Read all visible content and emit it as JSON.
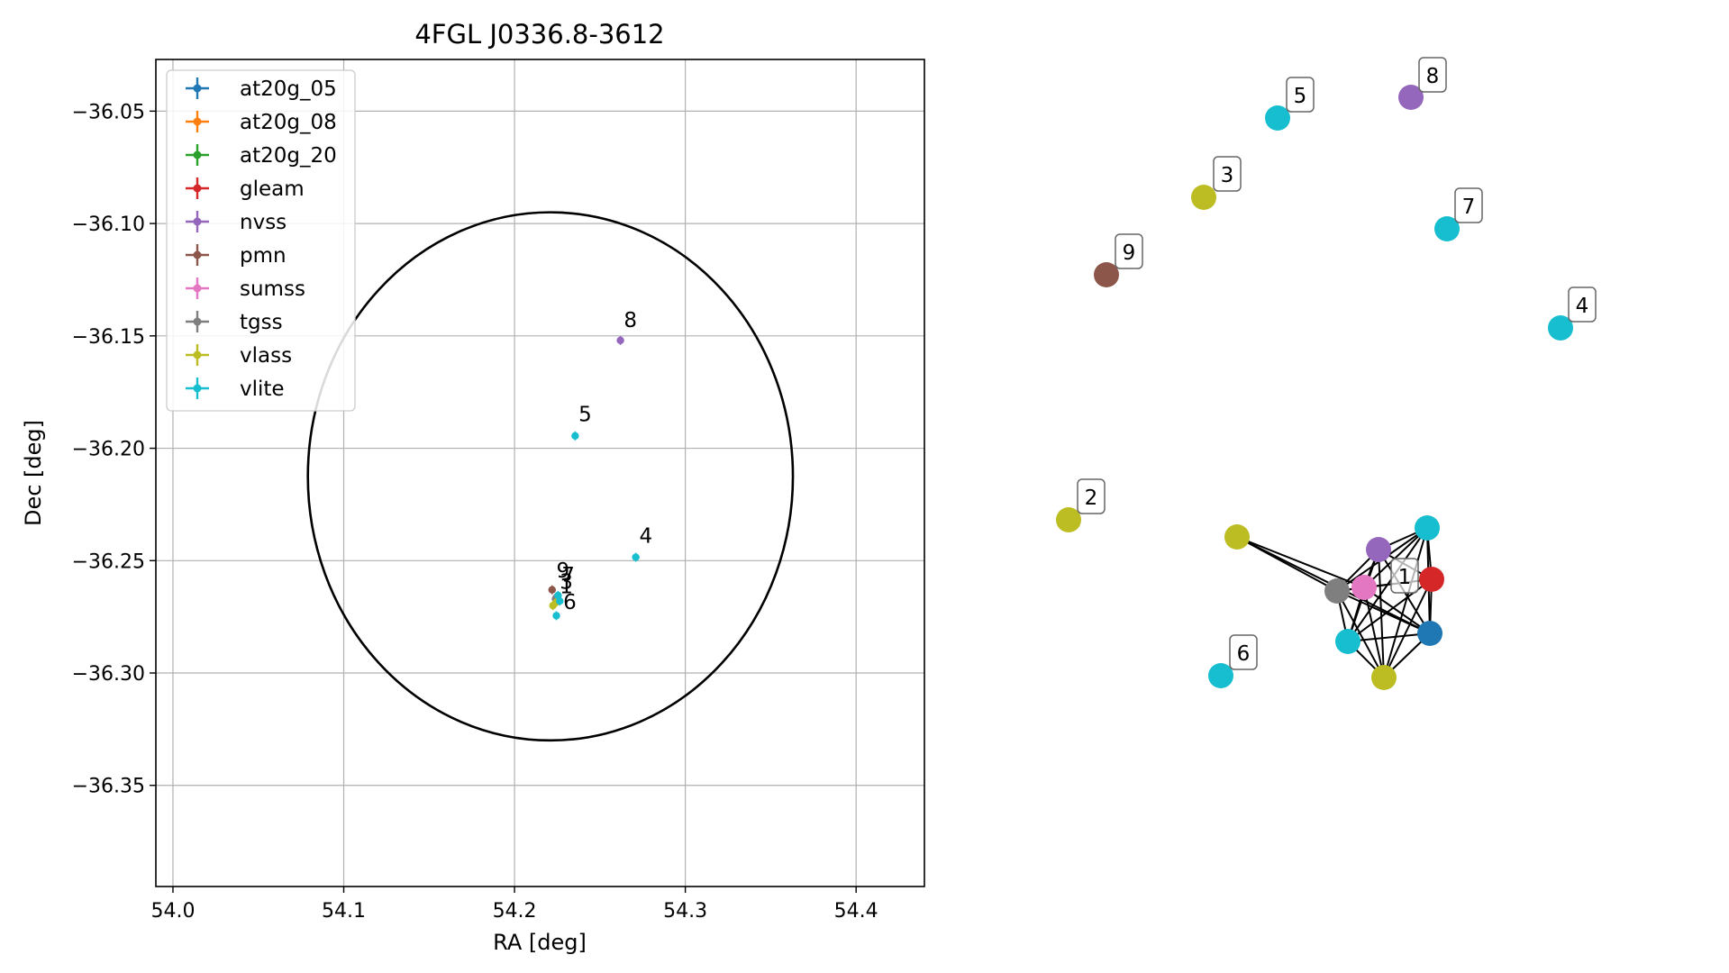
{
  "chart_data": [
    {
      "type": "scatter",
      "title": "4FGL J0336.8-3612",
      "xlabel": "RA [deg]",
      "ylabel": "Dec [deg]",
      "xlim": [
        53.99,
        54.44
      ],
      "ylim": [
        -36.395,
        -36.027
      ],
      "xticks": [
        54.0,
        54.1,
        54.2,
        54.3,
        54.4
      ],
      "xtick_labels": [
        "54.0",
        "54.1",
        "54.2",
        "54.3",
        "54.4"
      ],
      "yticks": [
        -36.05,
        -36.1,
        -36.15,
        -36.2,
        -36.25,
        -36.3,
        -36.35
      ],
      "ytick_labels": [
        "−36.05",
        "−36.10",
        "−36.15",
        "−36.20",
        "−36.25",
        "−36.30",
        "−36.35"
      ],
      "grid": true,
      "legend_position": "top-left",
      "series": [
        {
          "name": "at20g_05",
          "color": "#1f77b4",
          "points": [
            {
              "x": 54.2245,
              "y": -36.2665
            }
          ]
        },
        {
          "name": "at20g_08",
          "color": "#ff7f0e",
          "points": [
            {
              "x": 54.2245,
              "y": -36.2665
            }
          ]
        },
        {
          "name": "at20g_20",
          "color": "#2ca02c",
          "points": [
            {
              "x": 54.2245,
              "y": -36.2665
            }
          ]
        },
        {
          "name": "gleam",
          "color": "#d62728",
          "points": [
            {
              "x": 54.225,
              "y": -36.266
            }
          ]
        },
        {
          "name": "nvss",
          "color": "#9467bd",
          "points": [
            {
              "x": 54.2245,
              "y": -36.2665
            },
            {
              "x": 54.262,
              "y": -36.152
            }
          ]
        },
        {
          "name": "pmn",
          "color": "#8c564b",
          "points": [
            {
              "x": 54.222,
              "y": -36.263
            }
          ]
        },
        {
          "name": "sumss",
          "color": "#e377c2",
          "points": [
            {
              "x": 54.2245,
              "y": -36.2665
            }
          ]
        },
        {
          "name": "tgss",
          "color": "#7f7f7f",
          "points": [
            {
              "x": 54.224,
              "y": -36.267
            }
          ]
        },
        {
          "name": "vlass",
          "color": "#bcbd22",
          "points": [
            {
              "x": 54.2225,
              "y": -36.27
            },
            {
              "x": 54.2245,
              "y": -36.2685
            }
          ]
        },
        {
          "name": "vlite",
          "color": "#17becf",
          "points": [
            {
              "x": 54.2245,
              "y": -36.2745
            },
            {
              "x": 54.2355,
              "y": -36.1945
            },
            {
              "x": 54.271,
              "y": -36.2485
            },
            {
              "x": 54.2265,
              "y": -36.268
            },
            {
              "x": 54.2255,
              "y": -36.2655
            }
          ]
        }
      ],
      "labels": [
        {
          "text": "8",
          "x": 54.264,
          "y": -36.146
        },
        {
          "text": "5",
          "x": 54.2375,
          "y": -36.188
        },
        {
          "text": "4",
          "x": 54.273,
          "y": -36.242
        },
        {
          "text": "9",
          "x": 54.2245,
          "y": -36.2575
        },
        {
          "text": "7",
          "x": 54.2275,
          "y": -36.2595
        },
        {
          "text": "3",
          "x": 54.2265,
          "y": -36.2625
        },
        {
          "text": "1",
          "x": 54.2265,
          "y": -36.2645
        },
        {
          "text": "6",
          "x": 54.2285,
          "y": -36.2715
        }
      ],
      "ellipse": {
        "center": [
          54.221,
          -36.2125
        ],
        "ra_semi_axis": 0.142,
        "dec_semi_axis": 0.1175,
        "color": "#000000"
      }
    },
    {
      "type": "network",
      "node_label_color": "#000000",
      "nodes": [
        {
          "id": "8",
          "color": "#9467bd",
          "label": "8"
        },
        {
          "id": "5",
          "color": "#17becf",
          "label": "5"
        },
        {
          "id": "3",
          "color": "#bcbd22",
          "label": "3"
        },
        {
          "id": "7",
          "color": "#17becf",
          "label": "7"
        },
        {
          "id": "9",
          "color": "#8c564b",
          "label": "9"
        },
        {
          "id": "4",
          "color": "#17becf",
          "label": "4"
        },
        {
          "id": "2",
          "color": "#bcbd22",
          "label": "2"
        },
        {
          "id": "6",
          "color": "#17becf",
          "label": "6"
        },
        {
          "id": "vlass-a",
          "color": "#bcbd22",
          "label": ""
        },
        {
          "id": "vlite-a",
          "color": "#17becf",
          "label": ""
        },
        {
          "id": "nvss",
          "color": "#9467bd",
          "label": ""
        },
        {
          "id": "1",
          "color": "#d62728",
          "label": "1"
        },
        {
          "id": "tgss",
          "color": "#7f7f7f",
          "label": ""
        },
        {
          "id": "sumss",
          "color": "#e377c2",
          "label": ""
        },
        {
          "id": "at20g",
          "color": "#1f77b4",
          "label": ""
        },
        {
          "id": "vlite-b",
          "color": "#17becf",
          "label": ""
        },
        {
          "id": "vlass-b",
          "color": "#bcbd22",
          "label": ""
        }
      ],
      "edges": [
        [
          "vlass-a",
          "tgss"
        ],
        [
          "vlass-a",
          "at20g"
        ],
        [
          "vlass-a",
          "sumss"
        ],
        [
          "tgss",
          "nvss"
        ],
        [
          "tgss",
          "vlite-a"
        ],
        [
          "tgss",
          "1"
        ],
        [
          "tgss",
          "at20g"
        ],
        [
          "tgss",
          "vlite-b"
        ],
        [
          "tgss",
          "vlass-b"
        ],
        [
          "tgss",
          "sumss"
        ],
        [
          "sumss",
          "nvss"
        ],
        [
          "sumss",
          "vlite-a"
        ],
        [
          "sumss",
          "1"
        ],
        [
          "sumss",
          "at20g"
        ],
        [
          "sumss",
          "vlite-b"
        ],
        [
          "sumss",
          "vlass-b"
        ],
        [
          "nvss",
          "vlite-a"
        ],
        [
          "nvss",
          "1"
        ],
        [
          "nvss",
          "at20g"
        ],
        [
          "nvss",
          "vlite-b"
        ],
        [
          "nvss",
          "vlass-b"
        ],
        [
          "vlite-a",
          "1"
        ],
        [
          "vlite-a",
          "at20g"
        ],
        [
          "vlite-a",
          "vlite-b"
        ],
        [
          "vlite-a",
          "vlass-b"
        ],
        [
          "1",
          "at20g"
        ],
        [
          "1",
          "vlite-b"
        ],
        [
          "1",
          "vlass-b"
        ],
        [
          "at20g",
          "vlite-b"
        ],
        [
          "at20g",
          "vlass-b"
        ],
        [
          "vlite-b",
          "vlass-b"
        ]
      ]
    }
  ]
}
